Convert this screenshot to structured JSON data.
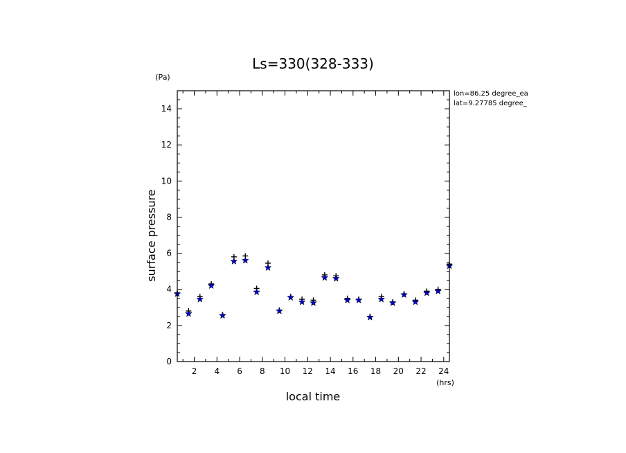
{
  "chart_data": {
    "type": "scatter",
    "title": "Ls=330(328-333)",
    "xlabel": "local time",
    "ylabel": "surface pressure",
    "x_unit": "(hrs)",
    "y_unit": "(Pa)",
    "xlim": [
      0.5,
      24.5
    ],
    "ylim": [
      0,
      15
    ],
    "x_ticks": [
      2,
      4,
      6,
      8,
      10,
      12,
      14,
      16,
      18,
      20,
      22,
      24
    ],
    "y_ticks": [
      0,
      2,
      4,
      6,
      8,
      10,
      12,
      14
    ],
    "annotations": [
      "lon=86.25 degree_ea",
      "lat=9.27785 degree_"
    ],
    "series": [
      {
        "marker": "plus",
        "color": "#000000",
        "x": [
          0.5,
          1.5,
          2.5,
          3.5,
          4.5,
          5.5,
          6.5,
          7.5,
          8.5,
          9.5,
          10.5,
          11.5,
          12.5,
          13.5,
          14.5,
          15.5,
          16.5,
          17.5,
          18.5,
          19.5,
          20.5,
          21.5,
          22.5,
          23.5,
          24.5
        ],
        "values": [
          3.8,
          2.8,
          3.6,
          4.3,
          2.6,
          5.8,
          5.85,
          4.05,
          5.45,
          2.85,
          3.6,
          3.45,
          3.4,
          4.8,
          4.75,
          3.5,
          3.45,
          2.5,
          3.6,
          3.3,
          3.75,
          3.4,
          3.9,
          4.0,
          5.4
        ]
      },
      {
        "marker": "star",
        "color": "#0000cc",
        "x": [
          0.5,
          1.5,
          2.5,
          3.5,
          4.5,
          5.5,
          6.5,
          7.5,
          8.5,
          9.5,
          10.5,
          11.5,
          12.5,
          13.5,
          14.5,
          15.5,
          16.5,
          17.5,
          18.5,
          19.5,
          20.5,
          21.5,
          22.5,
          23.5,
          24.5
        ],
        "values": [
          3.75,
          2.65,
          3.45,
          4.2,
          2.55,
          5.55,
          5.6,
          3.85,
          5.2,
          2.8,
          3.55,
          3.3,
          3.25,
          4.65,
          4.6,
          3.4,
          3.4,
          2.45,
          3.45,
          3.25,
          3.7,
          3.3,
          3.8,
          3.9,
          5.3
        ]
      }
    ]
  }
}
